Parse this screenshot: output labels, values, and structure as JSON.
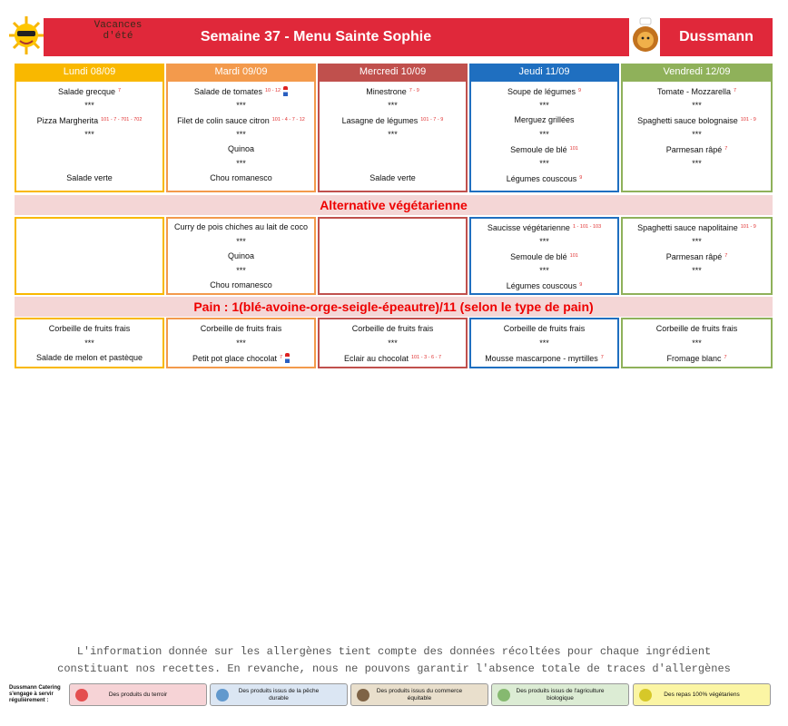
{
  "header": {
    "theme": "Vacances d'été",
    "title": "Semaine 37 - Menu Sainte Sophie",
    "brand": "Dussmann"
  },
  "days": [
    {
      "name": "Lundi 08/09",
      "color": "#f9b800",
      "main": [
        {
          "text": "Salade grecque",
          "allergens": "7"
        },
        {
          "text": "***"
        },
        {
          "text": "Pizza Margherita",
          "allergens": "101 - 7 - 701 - 702"
        },
        {
          "text": "***"
        },
        null,
        null,
        {
          "text": "Salade verte"
        }
      ],
      "vegetarian": [],
      "dessert": [
        {
          "text": "Corbeille de fruits frais"
        },
        {
          "text": "***"
        },
        {
          "text": "Salade de melon et pastèque"
        }
      ]
    },
    {
      "name": "Mardi 09/09",
      "color": "#f39a4c",
      "main": [
        {
          "text": "Salade de tomates",
          "allergens": "10 - 12",
          "terroir": true
        },
        {
          "text": "***"
        },
        {
          "text": "Filet de colin sauce citron",
          "allergens": "101 - 4 - 7 - 12"
        },
        {
          "text": "***"
        },
        {
          "text": "Quinoa"
        },
        {
          "text": "***"
        },
        {
          "text": "Chou romanesco"
        }
      ],
      "vegetarian": [
        {
          "text": "Curry de pois chiches au lait de coco"
        },
        {
          "text": "***"
        },
        {
          "text": "Quinoa"
        },
        {
          "text": "***"
        },
        {
          "text": "Chou romanesco"
        }
      ],
      "dessert": [
        {
          "text": "Corbeille de fruits frais"
        },
        {
          "text": "***"
        },
        {
          "text": "Petit pot glace chocolat",
          "allergens": "7",
          "terroir": true
        }
      ]
    },
    {
      "name": "Mercredi 10/09",
      "color": "#c0504d",
      "main": [
        {
          "text": "Minestrone",
          "allergens": "7 - 9"
        },
        {
          "text": "***"
        },
        {
          "text": "Lasagne de légumes",
          "allergens": "101 - 7 - 9"
        },
        {
          "text": "***"
        },
        null,
        null,
        {
          "text": "Salade verte"
        }
      ],
      "vegetarian": [],
      "dessert": [
        {
          "text": "Corbeille de fruits frais"
        },
        {
          "text": "***"
        },
        {
          "text": "Eclair au chocolat",
          "allergens": "101 - 3 - 6 - 7"
        }
      ]
    },
    {
      "name": "Jeudi 11/09",
      "color": "#1f6fc0",
      "main": [
        {
          "text": "Soupe de légumes",
          "allergens": "9"
        },
        {
          "text": "***"
        },
        {
          "text": "Merguez grillées"
        },
        {
          "text": "***"
        },
        {
          "text": "Semoule de blé",
          "allergens": "101"
        },
        {
          "text": "***"
        },
        {
          "text": "Légumes couscous",
          "allergens": "9"
        }
      ],
      "vegetarian": [
        {
          "text": "Saucisse végétarienne",
          "allergens": "1 - 101 - 103"
        },
        {
          "text": "***"
        },
        {
          "text": "Semoule de blé",
          "allergens": "101"
        },
        {
          "text": "***"
        },
        {
          "text": "Légumes couscous",
          "allergens": "9"
        }
      ],
      "dessert": [
        {
          "text": "Corbeille de fruits frais"
        },
        {
          "text": "***"
        },
        {
          "text": "Mousse mascarpone - myrtilles",
          "allergens": "7"
        }
      ]
    },
    {
      "name": "Vendredi 12/09",
      "color": "#8fb15a",
      "main": [
        {
          "text": "Tomate - Mozzarella",
          "allergens": "7"
        },
        {
          "text": "***"
        },
        {
          "text": "Spaghetti sauce bolognaise",
          "allergens": "101 - 9"
        },
        {
          "text": "***"
        },
        {
          "text": "Parmesan râpé",
          "allergens": "7"
        },
        {
          "text": "***"
        }
      ],
      "vegetarian": [
        {
          "text": "Spaghetti sauce napolitaine",
          "allergens": "101 - 9"
        },
        {
          "text": "***"
        },
        {
          "text": "Parmesan râpé",
          "allergens": "7"
        },
        {
          "text": "***"
        }
      ],
      "dessert": [
        {
          "text": "Corbeille de fruits frais"
        },
        {
          "text": "***"
        },
        {
          "text": "Fromage blanc",
          "allergens": "7"
        }
      ]
    }
  ],
  "bands": {
    "vegetarian": "Alternative végétarienne",
    "bread": "Pain : 1(blé-avoine-orge-seigle-épeautre)/11 (selon le type de pain)"
  },
  "footer": {
    "disclaimer": "L'information donnée sur les allergènes tient compte des données récoltées pour chaque ingrédient constituant nos recettes. En revanche, nous ne pouvons garantir l'absence totale de traces d'allergènes",
    "legend_label": "Dussmann Catering s'engage à servir régulièrement :",
    "legend": [
      {
        "text": "Des produits du terroir",
        "color": "#f6d3d6"
      },
      {
        "text": "Des produits issus de la pêche durable",
        "color": "#dbe6f3"
      },
      {
        "text": "Des produits issus du commerce équitable",
        "color": "#e9dfcc"
      },
      {
        "text": "Des produits issus de l'agriculture biologique",
        "color": "#dcecd4"
      },
      {
        "text": "Des repas 100% végétariens",
        "color": "#fbf5a4"
      }
    ]
  }
}
